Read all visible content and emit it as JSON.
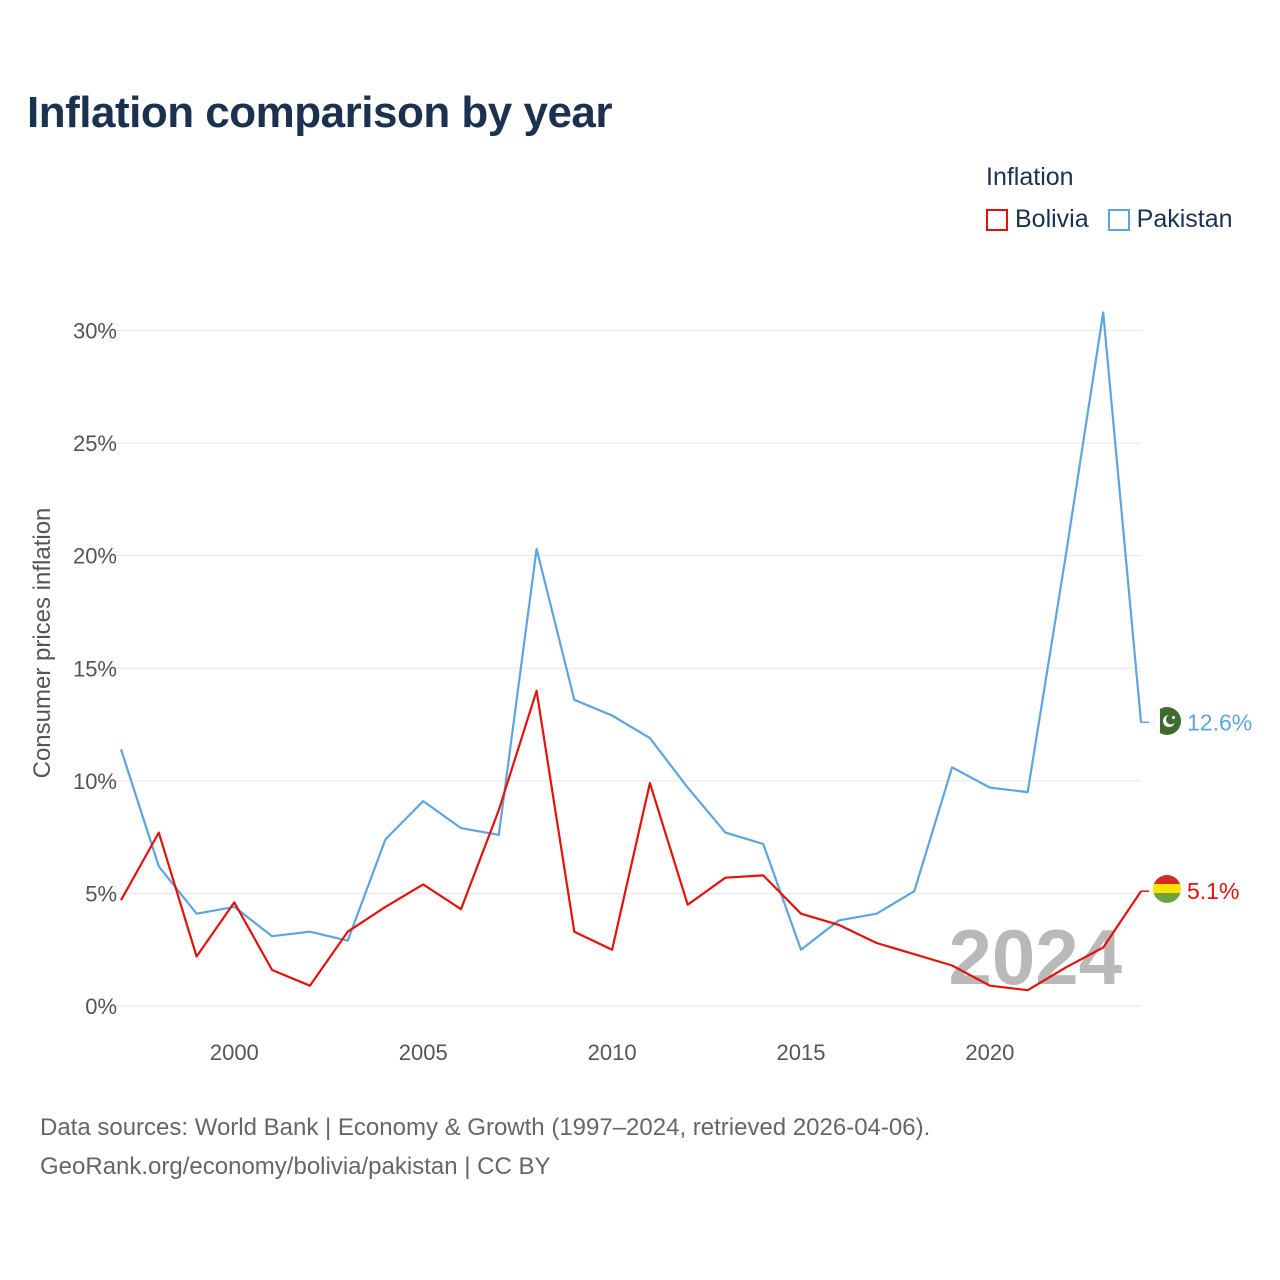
{
  "chart_data": {
    "type": "line",
    "title": "Inflation comparison by year",
    "legend_title": "Inflation",
    "ylabel": "Consumer prices inflation",
    "xlabel": "",
    "xlim": [
      1997,
      2024
    ],
    "ylim": [
      0,
      31
    ],
    "x_ticks": [
      2000,
      2005,
      2010,
      2015,
      2020
    ],
    "y_ticks": [
      0,
      5,
      10,
      15,
      20,
      25,
      30
    ],
    "y_tick_labels": [
      "0%",
      "5%",
      "10%",
      "15%",
      "20%",
      "25%",
      "30%"
    ],
    "watermark_year": "2024",
    "x": [
      1997,
      1998,
      1999,
      2000,
      2001,
      2002,
      2003,
      2004,
      2005,
      2006,
      2007,
      2008,
      2009,
      2010,
      2011,
      2012,
      2013,
      2014,
      2015,
      2016,
      2017,
      2018,
      2019,
      2020,
      2021,
      2022,
      2023,
      2024
    ],
    "series": [
      {
        "name": "Bolivia",
        "color": "#e3120b",
        "end_label": "5.1%",
        "values": [
          4.7,
          7.7,
          2.2,
          4.6,
          1.6,
          0.9,
          3.3,
          4.4,
          5.4,
          4.3,
          8.7,
          14.0,
          3.3,
          2.5,
          9.9,
          4.5,
          5.7,
          5.8,
          4.1,
          3.6,
          2.8,
          2.3,
          1.8,
          0.9,
          0.7,
          1.7,
          2.6,
          5.1
        ]
      },
      {
        "name": "Pakistan",
        "color": "#5ca5e0",
        "end_label": "12.6%",
        "values": [
          11.4,
          6.2,
          4.1,
          4.4,
          3.1,
          3.3,
          2.9,
          7.4,
          9.1,
          7.9,
          7.6,
          20.3,
          13.6,
          12.9,
          11.9,
          9.7,
          7.7,
          7.2,
          2.5,
          3.8,
          4.1,
          5.1,
          10.6,
          9.7,
          9.5,
          19.9,
          30.8,
          12.6
        ]
      }
    ]
  },
  "source": {
    "line1": "Data sources: World Bank | Economy & Growth (1997–2024, retrieved 2026-04-06).",
    "line2": "GeoRank.org/economy/bolivia/pakistan | CC BY"
  }
}
